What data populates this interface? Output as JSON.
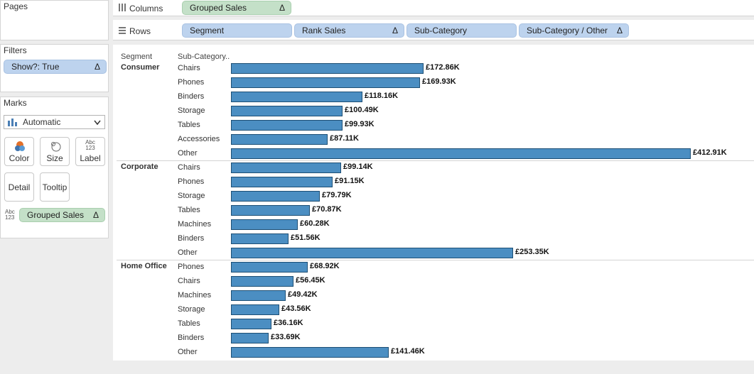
{
  "pages": {
    "title": "Pages"
  },
  "filters": {
    "title": "Filters",
    "pill": "Show?: True",
    "pill_icon": "delta-icon"
  },
  "marks": {
    "title": "Marks",
    "type_select": "Automatic",
    "buttons": {
      "color": "Color",
      "size": "Size",
      "label": "Label",
      "label_icon_text": "Abc\n123",
      "detail": "Detail",
      "tooltip": "Tooltip"
    },
    "field_icon_text": "Abc\n123",
    "field_pill": "Grouped Sales"
  },
  "columns_shelf": {
    "label": "Columns",
    "pills": [
      "Grouped Sales"
    ]
  },
  "rows_shelf": {
    "label": "Rows",
    "pills": [
      "Segment",
      "Rank Sales",
      "Sub-Category",
      "Sub-Category / Other"
    ]
  },
  "colors": {
    "bar_fill": "#4b8ec2",
    "bar_border": "#1d4f75",
    "dimension_pill": "#bdd3ee",
    "measure_pill": "#c4e0c8"
  },
  "chart_data": {
    "type": "bar",
    "orientation": "horizontal",
    "header": {
      "segment": "Segment",
      "subcategory": "Sub-Category.."
    },
    "xlim": [
      0,
      460
    ],
    "groups": [
      {
        "segment": "Consumer",
        "rows": [
          {
            "category": "Chairs",
            "value": 172.86,
            "label": "£172.86K"
          },
          {
            "category": "Phones",
            "value": 169.93,
            "label": "£169.93K"
          },
          {
            "category": "Binders",
            "value": 118.16,
            "label": "£118.16K"
          },
          {
            "category": "Storage",
            "value": 100.49,
            "label": "£100.49K"
          },
          {
            "category": "Tables",
            "value": 99.93,
            "label": "£99.93K"
          },
          {
            "category": "Accessories",
            "value": 87.11,
            "label": "£87.11K"
          },
          {
            "category": "Other",
            "value": 412.91,
            "label": "£412.91K"
          }
        ]
      },
      {
        "segment": "Corporate",
        "rows": [
          {
            "category": "Chairs",
            "value": 99.14,
            "label": "£99.14K"
          },
          {
            "category": "Phones",
            "value": 91.15,
            "label": "£91.15K"
          },
          {
            "category": "Storage",
            "value": 79.79,
            "label": "£79.79K"
          },
          {
            "category": "Tables",
            "value": 70.87,
            "label": "£70.87K"
          },
          {
            "category": "Machines",
            "value": 60.28,
            "label": "£60.28K"
          },
          {
            "category": "Binders",
            "value": 51.56,
            "label": "£51.56K"
          },
          {
            "category": "Other",
            "value": 253.35,
            "label": "£253.35K"
          }
        ]
      },
      {
        "segment": "Home Office",
        "rows": [
          {
            "category": "Phones",
            "value": 68.92,
            "label": "£68.92K"
          },
          {
            "category": "Chairs",
            "value": 56.45,
            "label": "£56.45K"
          },
          {
            "category": "Machines",
            "value": 49.42,
            "label": "£49.42K"
          },
          {
            "category": "Storage",
            "value": 43.56,
            "label": "£43.56K"
          },
          {
            "category": "Tables",
            "value": 36.16,
            "label": "£36.16K"
          },
          {
            "category": "Binders",
            "value": 33.69,
            "label": "£33.69K"
          },
          {
            "category": "Other",
            "value": 141.46,
            "label": "£141.46K"
          }
        ]
      }
    ]
  }
}
